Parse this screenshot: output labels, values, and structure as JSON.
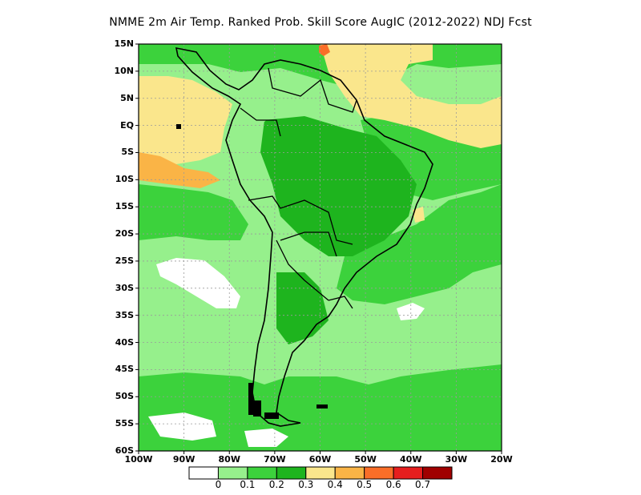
{
  "title": "NMME  2m Air Temp. Ranked Prob. Skill Score AugIC (2012-2022) NDJ Fcst",
  "axes": {
    "lat_labels": [
      "15N",
      "10N",
      "5N",
      "EQ",
      "5S",
      "10S",
      "15S",
      "20S",
      "25S",
      "30S",
      "35S",
      "40S",
      "45S",
      "50S",
      "55S",
      "60S"
    ],
    "lon_labels": [
      "100W",
      "90W",
      "80W",
      "70W",
      "60W",
      "50W",
      "40W",
      "30W",
      "20W"
    ],
    "lat_range": [
      -60,
      15
    ],
    "lon_range": [
      -100,
      -20
    ],
    "grid": true
  },
  "colorbar": {
    "labels": [
      "0",
      "0.1",
      "0.2",
      "0.3",
      "0.4",
      "0.5",
      "0.6",
      "0.7"
    ],
    "colors": [
      "#ffffff",
      "#96f08c",
      "#3cd23c",
      "#1eb41e",
      "#fae68c",
      "#fab446",
      "#fa6e28",
      "#e61e1e",
      "#a00000"
    ]
  },
  "chart_data": {
    "type": "heatmap",
    "title": "NMME  2m Air Temp. Ranked Prob. Skill Score AugIC (2012-2022) NDJ Fcst",
    "xlabel": "",
    "ylabel": "",
    "xlim": [
      -100,
      -20
    ],
    "ylim": [
      -60,
      15
    ],
    "color_levels": [
      0,
      0.1,
      0.2,
      0.3,
      0.4,
      0.5,
      0.6,
      0.7
    ],
    "regions": [
      {
        "area": "tropical eastern Pacific (10N-10S, 100W-85W)",
        "range": [
          0.3,
          0.4
        ]
      },
      {
        "area": "Caribbean / northern tropical Atlantic",
        "range": [
          0.3,
          0.4
        ]
      },
      {
        "area": "Amazon basin and Brazil",
        "range": [
          0.1,
          0.3
        ]
      },
      {
        "area": "southeastern Pacific (25S-35S, 95W-80W)",
        "range": [
          0,
          0.1
        ]
      },
      {
        "area": "Patagonia and southern oceans",
        "range": [
          0.1,
          0.2
        ]
      },
      {
        "area": "northern Venezuela coast",
        "range": [
          0.5,
          0.6
        ]
      }
    ]
  }
}
